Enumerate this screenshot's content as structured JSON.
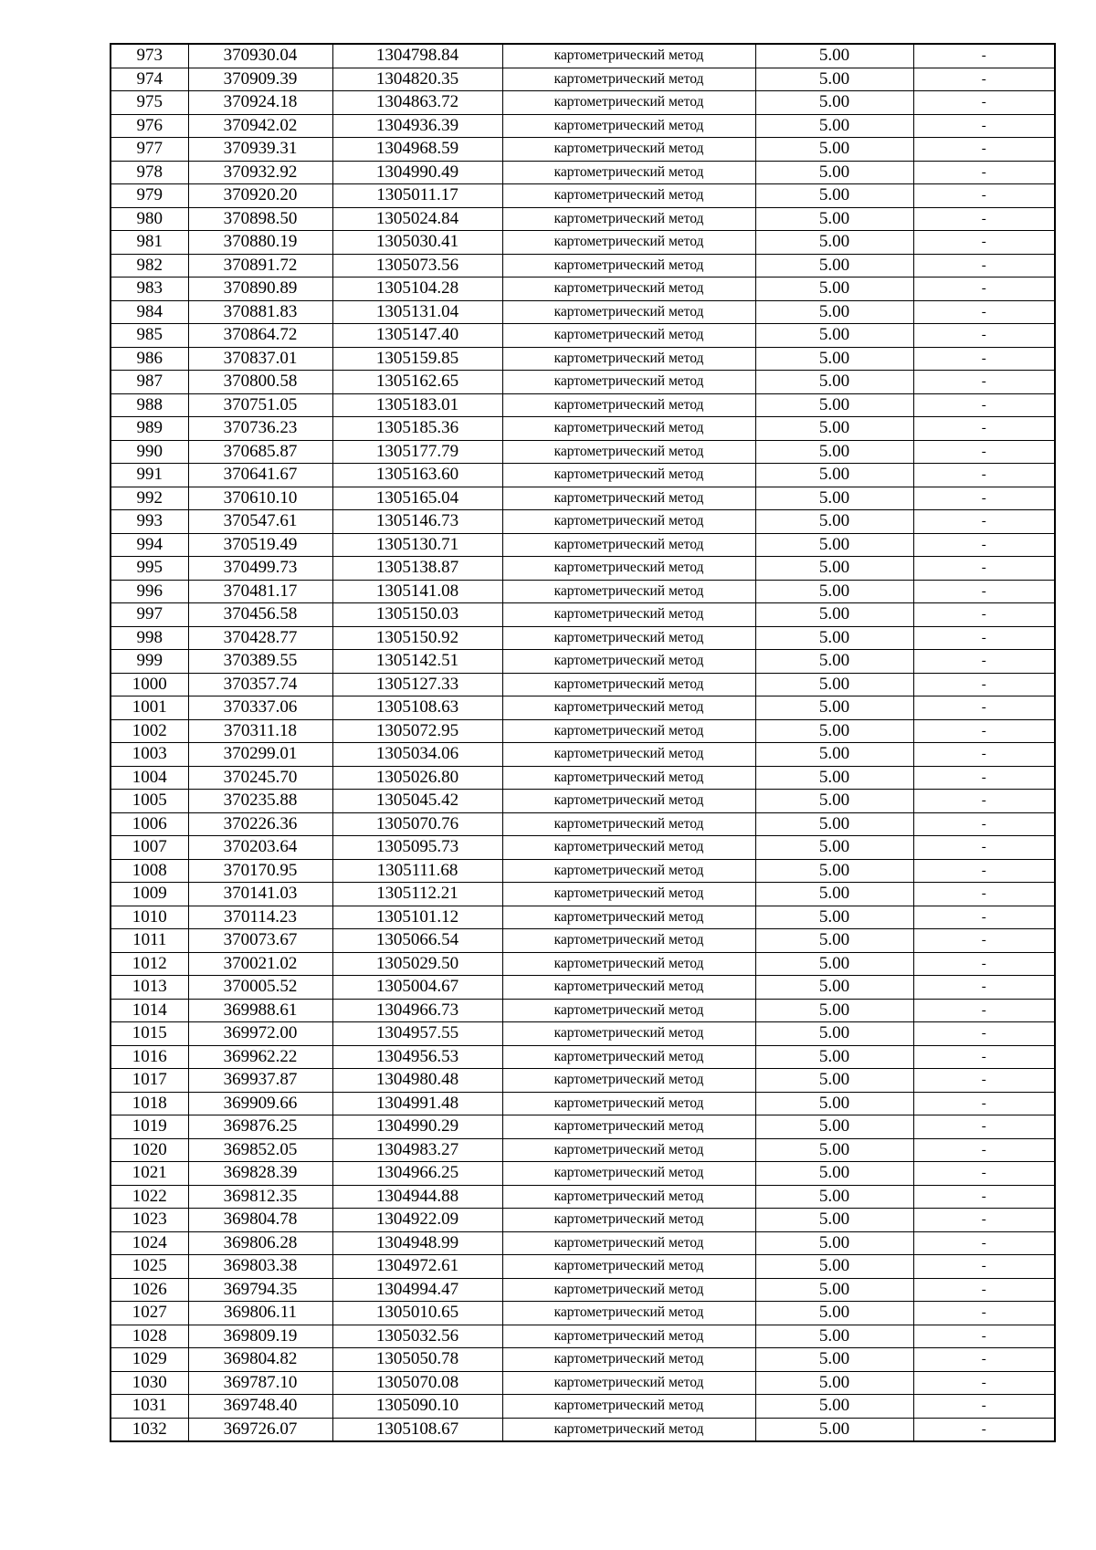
{
  "table": {
    "rows": [
      [
        "973",
        "370930.04",
        "1304798.84",
        "картометрический метод",
        "5.00",
        "-"
      ],
      [
        "974",
        "370909.39",
        "1304820.35",
        "картометрический метод",
        "5.00",
        "-"
      ],
      [
        "975",
        "370924.18",
        "1304863.72",
        "картометрический метод",
        "5.00",
        "-"
      ],
      [
        "976",
        "370942.02",
        "1304936.39",
        "картометрический метод",
        "5.00",
        "-"
      ],
      [
        "977",
        "370939.31",
        "1304968.59",
        "картометрический метод",
        "5.00",
        "-"
      ],
      [
        "978",
        "370932.92",
        "1304990.49",
        "картометрический метод",
        "5.00",
        "-"
      ],
      [
        "979",
        "370920.20",
        "1305011.17",
        "картометрический метод",
        "5.00",
        "-"
      ],
      [
        "980",
        "370898.50",
        "1305024.84",
        "картометрический метод",
        "5.00",
        "-"
      ],
      [
        "981",
        "370880.19",
        "1305030.41",
        "картометрический метод",
        "5.00",
        "-"
      ],
      [
        "982",
        "370891.72",
        "1305073.56",
        "картометрический метод",
        "5.00",
        "-"
      ],
      [
        "983",
        "370890.89",
        "1305104.28",
        "картометрический метод",
        "5.00",
        "-"
      ],
      [
        "984",
        "370881.83",
        "1305131.04",
        "картометрический метод",
        "5.00",
        "-"
      ],
      [
        "985",
        "370864.72",
        "1305147.40",
        "картометрический метод",
        "5.00",
        "-"
      ],
      [
        "986",
        "370837.01",
        "1305159.85",
        "картометрический метод",
        "5.00",
        "-"
      ],
      [
        "987",
        "370800.58",
        "1305162.65",
        "картометрический метод",
        "5.00",
        "-"
      ],
      [
        "988",
        "370751.05",
        "1305183.01",
        "картометрический метод",
        "5.00",
        "-"
      ],
      [
        "989",
        "370736.23",
        "1305185.36",
        "картометрический метод",
        "5.00",
        "-"
      ],
      [
        "990",
        "370685.87",
        "1305177.79",
        "картометрический метод",
        "5.00",
        "-"
      ],
      [
        "991",
        "370641.67",
        "1305163.60",
        "картометрический метод",
        "5.00",
        "-"
      ],
      [
        "992",
        "370610.10",
        "1305165.04",
        "картометрический метод",
        "5.00",
        "-"
      ],
      [
        "993",
        "370547.61",
        "1305146.73",
        "картометрический метод",
        "5.00",
        "-"
      ],
      [
        "994",
        "370519.49",
        "1305130.71",
        "картометрический метод",
        "5.00",
        "-"
      ],
      [
        "995",
        "370499.73",
        "1305138.87",
        "картометрический метод",
        "5.00",
        "-"
      ],
      [
        "996",
        "370481.17",
        "1305141.08",
        "картометрический метод",
        "5.00",
        "-"
      ],
      [
        "997",
        "370456.58",
        "1305150.03",
        "картометрический метод",
        "5.00",
        "-"
      ],
      [
        "998",
        "370428.77",
        "1305150.92",
        "картометрический метод",
        "5.00",
        "-"
      ],
      [
        "999",
        "370389.55",
        "1305142.51",
        "картометрический метод",
        "5.00",
        "-"
      ],
      [
        "1000",
        "370357.74",
        "1305127.33",
        "картометрический метод",
        "5.00",
        "-"
      ],
      [
        "1001",
        "370337.06",
        "1305108.63",
        "картометрический метод",
        "5.00",
        "-"
      ],
      [
        "1002",
        "370311.18",
        "1305072.95",
        "картометрический метод",
        "5.00",
        "-"
      ],
      [
        "1003",
        "370299.01",
        "1305034.06",
        "картометрический метод",
        "5.00",
        "-"
      ],
      [
        "1004",
        "370245.70",
        "1305026.80",
        "картометрический метод",
        "5.00",
        "-"
      ],
      [
        "1005",
        "370235.88",
        "1305045.42",
        "картометрический метод",
        "5.00",
        "-"
      ],
      [
        "1006",
        "370226.36",
        "1305070.76",
        "картометрический метод",
        "5.00",
        "-"
      ],
      [
        "1007",
        "370203.64",
        "1305095.73",
        "картометрический метод",
        "5.00",
        "-"
      ],
      [
        "1008",
        "370170.95",
        "1305111.68",
        "картометрический метод",
        "5.00",
        "-"
      ],
      [
        "1009",
        "370141.03",
        "1305112.21",
        "картометрический метод",
        "5.00",
        "-"
      ],
      [
        "1010",
        "370114.23",
        "1305101.12",
        "картометрический метод",
        "5.00",
        "-"
      ],
      [
        "1011",
        "370073.67",
        "1305066.54",
        "картометрический метод",
        "5.00",
        "-"
      ],
      [
        "1012",
        "370021.02",
        "1305029.50",
        "картометрический метод",
        "5.00",
        "-"
      ],
      [
        "1013",
        "370005.52",
        "1305004.67",
        "картометрический метод",
        "5.00",
        "-"
      ],
      [
        "1014",
        "369988.61",
        "1304966.73",
        "картометрический метод",
        "5.00",
        "-"
      ],
      [
        "1015",
        "369972.00",
        "1304957.55",
        "картометрический метод",
        "5.00",
        "-"
      ],
      [
        "1016",
        "369962.22",
        "1304956.53",
        "картометрический метод",
        "5.00",
        "-"
      ],
      [
        "1017",
        "369937.87",
        "1304980.48",
        "картометрический метод",
        "5.00",
        "-"
      ],
      [
        "1018",
        "369909.66",
        "1304991.48",
        "картометрический метод",
        "5.00",
        "-"
      ],
      [
        "1019",
        "369876.25",
        "1304990.29",
        "картометрический метод",
        "5.00",
        "-"
      ],
      [
        "1020",
        "369852.05",
        "1304983.27",
        "картометрический метод",
        "5.00",
        "-"
      ],
      [
        "1021",
        "369828.39",
        "1304966.25",
        "картометрический метод",
        "5.00",
        "-"
      ],
      [
        "1022",
        "369812.35",
        "1304944.88",
        "картометрический метод",
        "5.00",
        "-"
      ],
      [
        "1023",
        "369804.78",
        "1304922.09",
        "картометрический метод",
        "5.00",
        "-"
      ],
      [
        "1024",
        "369806.28",
        "1304948.99",
        "картометрический метод",
        "5.00",
        "-"
      ],
      [
        "1025",
        "369803.38",
        "1304972.61",
        "картометрический метод",
        "5.00",
        "-"
      ],
      [
        "1026",
        "369794.35",
        "1304994.47",
        "картометрический метод",
        "5.00",
        "-"
      ],
      [
        "1027",
        "369806.11",
        "1305010.65",
        "картометрический метод",
        "5.00",
        "-"
      ],
      [
        "1028",
        "369809.19",
        "1305032.56",
        "картометрический метод",
        "5.00",
        "-"
      ],
      [
        "1029",
        "369804.82",
        "1305050.78",
        "картометрический метод",
        "5.00",
        "-"
      ],
      [
        "1030",
        "369787.10",
        "1305070.08",
        "картометрический метод",
        "5.00",
        "-"
      ],
      [
        "1031",
        "369748.40",
        "1305090.10",
        "картометрический метод",
        "5.00",
        "-"
      ],
      [
        "1032",
        "369726.07",
        "1305108.67",
        "картометрический метод",
        "5.00",
        "-"
      ]
    ]
  }
}
